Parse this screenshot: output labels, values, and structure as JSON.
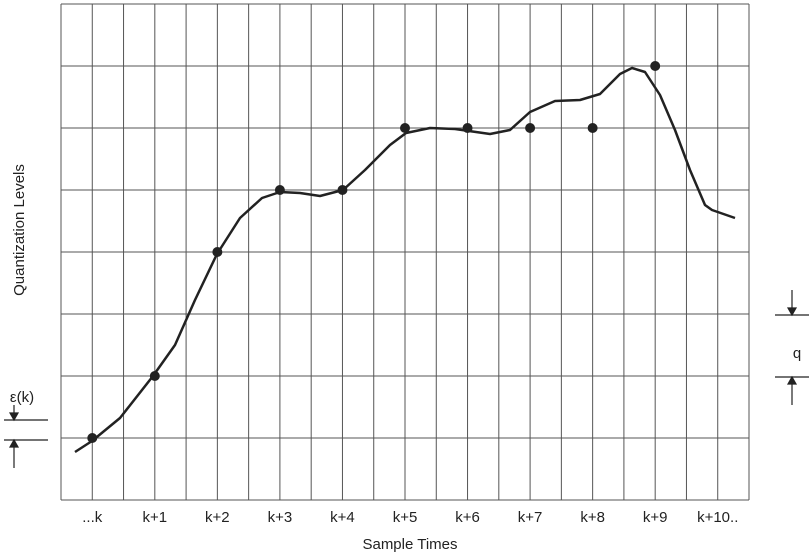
{
  "chart_data": {
    "type": "scatter",
    "x_label": "Sample Times",
    "y_label": "Quantization Levels",
    "categories": [
      "...k",
      "k+1",
      "k+2",
      "k+3",
      "k+4",
      "k+5",
      "k+6",
      "k+7",
      "k+8",
      "k+9",
      "k+10.."
    ],
    "values": [
      1,
      2,
      4,
      5,
      5,
      6,
      6,
      6,
      6,
      7,
      null
    ],
    "color": "#222222",
    "ylim": [
      0,
      8
    ],
    "yticks": [
      0,
      1,
      2,
      3,
      4,
      5,
      6,
      7,
      8
    ],
    "grid": true,
    "annotations": [
      "ε(k)",
      "q"
    ]
  }
}
